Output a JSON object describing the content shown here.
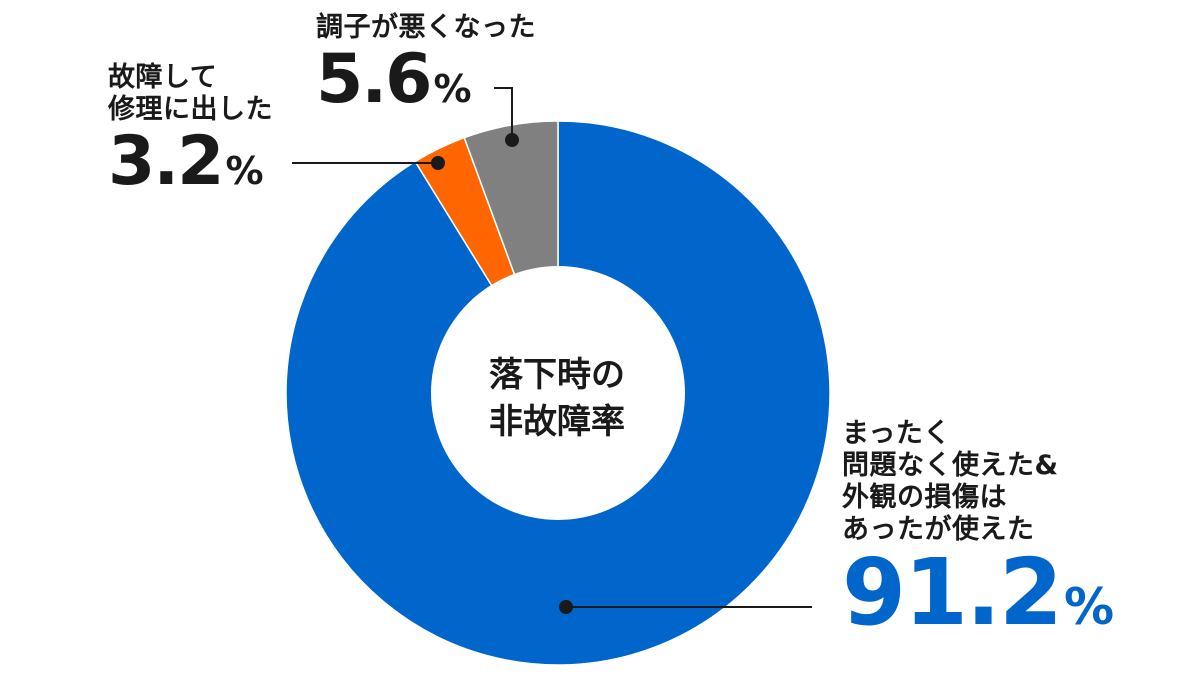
{
  "chart_data": {
    "type": "pie",
    "title": "",
    "center_label": [
      "落下時の",
      "非故障率"
    ],
    "categories": [
      "まったく問題なく使えた&外観の損傷はあったが使えた",
      "故障して修理に出した",
      "調子が悪くなった"
    ],
    "values": [
      91.2,
      3.2,
      5.6
    ],
    "unit": "%",
    "colors": [
      "#0066CC",
      "#FF6600",
      "#808080"
    ],
    "label_lines": {
      "ok": [
        "まったく",
        "問題なく使えた&",
        "外観の損傷は",
        "あったが使えた"
      ],
      "failed": [
        "故障して",
        "修理に出した"
      ],
      "bad": [
        "調子が悪くなった"
      ]
    },
    "value_text": {
      "ok": "91.2",
      "failed": "3.2",
      "bad": "5.6"
    }
  }
}
